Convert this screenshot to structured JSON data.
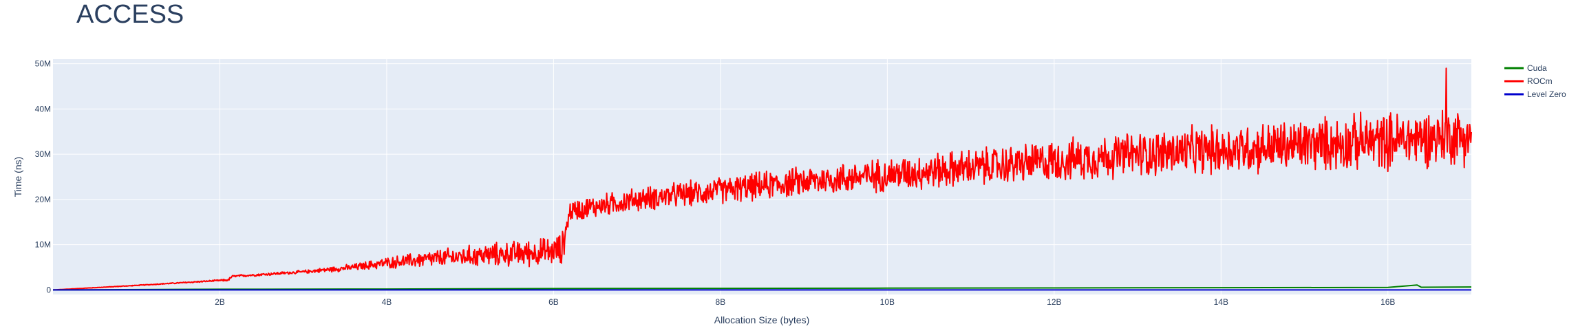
{
  "title": "ACCESS",
  "chart_data": {
    "type": "line",
    "title": "ACCESS",
    "xlabel": "Allocation Size (bytes)",
    "ylabel": "Time (ns)",
    "xlim": [
      0,
      17000000000
    ],
    "ylim": [
      -1000000,
      51000000
    ],
    "x_ticks": [
      {
        "value": 2000000000,
        "label": "2B"
      },
      {
        "value": 4000000000,
        "label": "4B"
      },
      {
        "value": 6000000000,
        "label": "6B"
      },
      {
        "value": 8000000000,
        "label": "8B"
      },
      {
        "value": 10000000000,
        "label": "10B"
      },
      {
        "value": 12000000000,
        "label": "12B"
      },
      {
        "value": 14000000000,
        "label": "14B"
      },
      {
        "value": 16000000000,
        "label": "16B"
      }
    ],
    "y_ticks": [
      {
        "value": 0,
        "label": "0"
      },
      {
        "value": 10000000,
        "label": "10M"
      },
      {
        "value": 20000000,
        "label": "20M"
      },
      {
        "value": 30000000,
        "label": "30M"
      },
      {
        "value": 40000000,
        "label": "40M"
      },
      {
        "value": 50000000,
        "label": "50M"
      }
    ],
    "grid": true,
    "legend_position": "top-right",
    "series": [
      {
        "name": "Cuda",
        "color": "#008000",
        "x": [
          0,
          2000000000,
          4000000000,
          6000000000,
          8000000000,
          10000000000,
          12000000000,
          14000000000,
          16000000000,
          16350000000,
          16400000000,
          17000000000
        ],
        "y": [
          0,
          150000,
          200000,
          300000,
          350000,
          400000,
          450000,
          500000,
          550000,
          1100000,
          600000,
          650000
        ]
      },
      {
        "name": "ROCm",
        "color": "#ff0000",
        "x": [
          0,
          1000000000,
          2000000000,
          2100000000,
          2150000000,
          3000000000,
          3600000000,
          4000000000,
          4500000000,
          5000000000,
          5500000000,
          6000000000,
          6100000000,
          6200000000,
          7000000000,
          8000000000,
          9000000000,
          10000000000,
          11000000000,
          12000000000,
          13000000000,
          14000000000,
          15000000000,
          16000000000,
          16700000000,
          17000000000
        ],
        "y": [
          0,
          1000000,
          2100000,
          2200000,
          3000000,
          4000000,
          5000000,
          6000000,
          6800000,
          7500000,
          8000000,
          8500000,
          9000000,
          17500000,
          20000000,
          22000000,
          24000000,
          25500000,
          27000000,
          28500000,
          30000000,
          31000000,
          32000000,
          33000000,
          34000000,
          34000000
        ],
        "noise": [
          0,
          100000,
          200000,
          300000,
          300000,
          400000,
          900000,
          1400000,
          2200000,
          2700000,
          3200000,
          3700000,
          4200000,
          2800000,
          3000000,
          3400000,
          3800000,
          4300000,
          4800000,
          5300000,
          5800000,
          6300000,
          6800000,
          7300000,
          7300000,
          7300000
        ],
        "peak": {
          "x": 16700000000,
          "y": 49000000
        }
      },
      {
        "name": "Level Zero",
        "color": "#0000cd",
        "x": [
          0,
          17000000000
        ],
        "y": [
          0,
          0
        ]
      }
    ]
  }
}
